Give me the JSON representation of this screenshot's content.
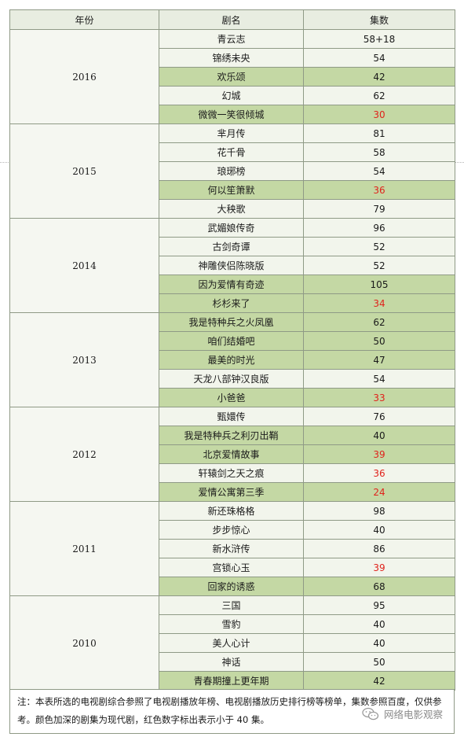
{
  "headers": [
    "年份",
    "剧名",
    "集数"
  ],
  "groups": [
    {
      "year": "2016",
      "rows": [
        {
          "name": "青云志",
          "episodes": "58+18",
          "dark": false,
          "red": false
        },
        {
          "name": "锦绣未央",
          "episodes": "54",
          "dark": false,
          "red": false
        },
        {
          "name": "欢乐颂",
          "episodes": "42",
          "dark": true,
          "red": false
        },
        {
          "name": "幻城",
          "episodes": "62",
          "dark": false,
          "red": false
        },
        {
          "name": "微微一笑很倾城",
          "episodes": "30",
          "dark": true,
          "red": true
        }
      ]
    },
    {
      "year": "2015",
      "rows": [
        {
          "name": "芈月传",
          "episodes": "81",
          "dark": false,
          "red": false
        },
        {
          "name": "花千骨",
          "episodes": "58",
          "dark": false,
          "red": false
        },
        {
          "name": "琅琊榜",
          "episodes": "54",
          "dark": false,
          "red": false
        },
        {
          "name": "何以笙箫默",
          "episodes": "36",
          "dark": true,
          "red": true
        },
        {
          "name": "大秧歌",
          "episodes": "79",
          "dark": false,
          "red": false
        }
      ]
    },
    {
      "year": "2014",
      "rows": [
        {
          "name": "武媚娘传奇",
          "episodes": "96",
          "dark": false,
          "red": false
        },
        {
          "name": "古剑奇谭",
          "episodes": "52",
          "dark": false,
          "red": false
        },
        {
          "name": "神雕侠侣陈晓版",
          "episodes": "52",
          "dark": false,
          "red": false
        },
        {
          "name": "因为爱情有奇迹",
          "episodes": "105",
          "dark": true,
          "red": false
        },
        {
          "name": "杉杉来了",
          "episodes": "34",
          "dark": true,
          "red": true
        }
      ]
    },
    {
      "year": "2013",
      "rows": [
        {
          "name": "我是特种兵之火凤凰",
          "episodes": "62",
          "dark": true,
          "red": false
        },
        {
          "name": "咱们结婚吧",
          "episodes": "50",
          "dark": true,
          "red": false
        },
        {
          "name": "最美的时光",
          "episodes": "47",
          "dark": true,
          "red": false
        },
        {
          "name": "天龙八部钟汉良版",
          "episodes": "54",
          "dark": false,
          "red": false
        },
        {
          "name": "小爸爸",
          "episodes": "33",
          "dark": true,
          "red": true
        }
      ]
    },
    {
      "year": "2012",
      "rows": [
        {
          "name": "甄嬛传",
          "episodes": "76",
          "dark": false,
          "red": false
        },
        {
          "name": "我是特种兵之利刃出鞘",
          "episodes": "40",
          "dark": true,
          "red": false
        },
        {
          "name": "北京爱情故事",
          "episodes": "39",
          "dark": true,
          "red": true
        },
        {
          "name": "轩辕剑之天之痕",
          "episodes": "36",
          "dark": false,
          "red": true
        },
        {
          "name": "爱情公寓第三季",
          "episodes": "24",
          "dark": true,
          "red": true
        }
      ]
    },
    {
      "year": "2011",
      "rows": [
        {
          "name": "新还珠格格",
          "episodes": "98",
          "dark": false,
          "red": false
        },
        {
          "name": "步步惊心",
          "episodes": "40",
          "dark": false,
          "red": false
        },
        {
          "name": "新水浒传",
          "episodes": "86",
          "dark": false,
          "red": false
        },
        {
          "name": "宫锁心玉",
          "episodes": "39",
          "dark": false,
          "red": true
        },
        {
          "name": "回家的诱惑",
          "episodes": "68",
          "dark": true,
          "red": false
        }
      ]
    },
    {
      "year": "2010",
      "rows": [
        {
          "name": "三国",
          "episodes": "95",
          "dark": false,
          "red": false
        },
        {
          "name": "雪豹",
          "episodes": "40",
          "dark": false,
          "red": false
        },
        {
          "name": "美人心计",
          "episodes": "40",
          "dark": false,
          "red": false
        },
        {
          "name": "神话",
          "episodes": "50",
          "dark": false,
          "red": false
        },
        {
          "name": "青春期撞上更年期",
          "episodes": "42",
          "dark": true,
          "red": false
        }
      ]
    }
  ],
  "note": "注：本表所选的电视剧综合参照了电视剧播放年榜、电视剧播放历史排行榜等榜单，集数参照百度，仅供参考。颜色加深的剧集为现代剧，红色数字标出表示小于 40 集。",
  "watermark": "网络电影观察",
  "colors": {
    "dark_row": "#c4d8a4",
    "light_row": "#f2f5ec",
    "red_text": "#e0231c"
  }
}
